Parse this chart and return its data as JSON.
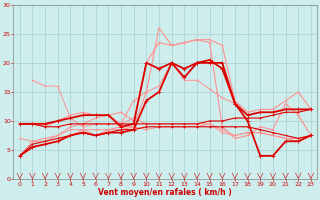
{
  "xlabel": "Vent moyen/en rafales ( km/h )",
  "bg_color": "#ceeeed",
  "grid_color": "#aacfcf",
  "xlim": [
    -0.5,
    23.5
  ],
  "ylim": [
    0,
    30
  ],
  "yticks": [
    0,
    5,
    10,
    15,
    20,
    25,
    30
  ],
  "xticks": [
    0,
    1,
    2,
    3,
    4,
    5,
    6,
    7,
    8,
    9,
    10,
    11,
    12,
    13,
    14,
    15,
    16,
    17,
    18,
    19,
    20,
    21,
    22,
    23
  ],
  "lines": [
    {
      "x": [
        0,
        1,
        2,
        3,
        4,
        5,
        6,
        7,
        8,
        9,
        10,
        11,
        12,
        13,
        14,
        15,
        16,
        17,
        18,
        19,
        20,
        21,
        22,
        23
      ],
      "y": [
        4.0,
        6.0,
        6.5,
        7.0,
        7.5,
        8.0,
        7.5,
        8.0,
        8.5,
        8.5,
        9.0,
        9.0,
        9.0,
        9.0,
        9.0,
        9.0,
        9.0,
        9.0,
        9.0,
        8.5,
        8.0,
        7.5,
        7.0,
        7.5
      ],
      "color": "#dd0000",
      "lw": 0.8,
      "marker": "+",
      "ms": 2.0,
      "zorder": 3
    },
    {
      "x": [
        0,
        1,
        2,
        3,
        4,
        5,
        6,
        7,
        8,
        9,
        10,
        11,
        12,
        13,
        14,
        15,
        16,
        17,
        18,
        19,
        20,
        21,
        22,
        23
      ],
      "y": [
        9.5,
        9.5,
        9.0,
        9.0,
        9.5,
        9.5,
        9.5,
        9.5,
        9.5,
        9.5,
        9.5,
        9.5,
        9.5,
        9.5,
        9.5,
        10.0,
        10.0,
        10.5,
        10.5,
        10.5,
        11.0,
        11.5,
        11.5,
        12.0
      ],
      "color": "#dd0000",
      "lw": 0.8,
      "marker": "+",
      "ms": 2.0,
      "zorder": 3
    },
    {
      "x": [
        0,
        1,
        2,
        3,
        4,
        5,
        6,
        7,
        8,
        9,
        10,
        11,
        12,
        13,
        14,
        15,
        16,
        17,
        18,
        19,
        20,
        21,
        22,
        23
      ],
      "y": [
        7.0,
        6.5,
        7.0,
        7.5,
        8.5,
        8.5,
        8.5,
        8.5,
        8.5,
        9.0,
        8.5,
        9.0,
        9.0,
        9.0,
        9.0,
        9.5,
        8.0,
        7.5,
        8.0,
        8.0,
        7.5,
        7.0,
        6.5,
        7.5
      ],
      "color": "#ff9090",
      "lw": 0.7,
      "marker": "+",
      "ms": 1.8,
      "zorder": 2
    },
    {
      "x": [
        0,
        1,
        2,
        3,
        4,
        5,
        6,
        7,
        8,
        9,
        10,
        11,
        12,
        13,
        14,
        15,
        16,
        17,
        18,
        19,
        20,
        21,
        22,
        23
      ],
      "y": [
        4.0,
        5.5,
        6.0,
        6.5,
        7.5,
        8.0,
        7.5,
        8.0,
        8.0,
        8.5,
        13.5,
        15.0,
        20.0,
        17.5,
        20.0,
        20.0,
        20.0,
        13.0,
        10.0,
        4.0,
        4.0,
        6.5,
        6.5,
        7.5
      ],
      "color": "#dd0000",
      "lw": 1.3,
      "marker": "+",
      "ms": 2.5,
      "zorder": 4
    },
    {
      "x": [
        0,
        1,
        2,
        3,
        4,
        5,
        6,
        7,
        8,
        9,
        10,
        11,
        12,
        13,
        14,
        15,
        16,
        17,
        18,
        19,
        20,
        21,
        22,
        23
      ],
      "y": [
        9.5,
        9.5,
        9.5,
        10.0,
        10.5,
        11.0,
        11.0,
        11.0,
        9.0,
        9.5,
        20.0,
        19.0,
        20.0,
        19.0,
        20.0,
        20.5,
        19.0,
        13.0,
        11.0,
        11.5,
        11.5,
        12.0,
        12.0,
        12.0
      ],
      "color": "#dd0000",
      "lw": 1.3,
      "marker": "+",
      "ms": 2.5,
      "zorder": 4
    },
    {
      "x": [
        0,
        1,
        2,
        3,
        4,
        5,
        6,
        7,
        8,
        9,
        10,
        11,
        12,
        13,
        14,
        15,
        16,
        17,
        18,
        19,
        20,
        21,
        22,
        23
      ],
      "y": [
        4.0,
        5.5,
        6.0,
        6.5,
        7.5,
        8.5,
        7.5,
        8.5,
        9.0,
        9.0,
        15.0,
        26.0,
        23.0,
        23.5,
        24.0,
        23.5,
        9.0,
        7.0,
        7.5,
        9.0,
        8.5,
        13.0,
        11.0,
        7.5
      ],
      "color": "#ff9090",
      "lw": 0.8,
      "marker": "+",
      "ms": 2.0,
      "zorder": 2
    },
    {
      "x": [
        0,
        1,
        2,
        3,
        4,
        5,
        6,
        7,
        8,
        9,
        10,
        11,
        12,
        13,
        14,
        15,
        16,
        17,
        18,
        19,
        20,
        21,
        22,
        23
      ],
      "y": [
        9.5,
        9.5,
        9.0,
        10.0,
        11.0,
        11.5,
        11.0,
        11.0,
        11.5,
        10.0,
        20.0,
        23.5,
        23.0,
        23.5,
        24.0,
        24.0,
        23.0,
        13.5,
        11.5,
        12.0,
        12.0,
        13.5,
        15.0,
        12.0
      ],
      "color": "#ff9090",
      "lw": 0.8,
      "marker": "+",
      "ms": 2.0,
      "zorder": 2
    },
    {
      "x": [
        0,
        1,
        2,
        3,
        4,
        5,
        6,
        7,
        8,
        9,
        10,
        11,
        12,
        13,
        14,
        15,
        16,
        17
      ],
      "y": [
        4.0,
        6.5,
        6.5,
        7.5,
        9.0,
        9.5,
        10.5,
        11.0,
        9.5,
        13.5,
        15.0,
        16.0,
        20.0,
        17.0,
        17.0,
        15.5,
        14.0,
        13.0
      ],
      "color": "#ff9090",
      "lw": 0.7,
      "marker": "+",
      "ms": 1.8,
      "zorder": 2
    },
    {
      "x": [
        1,
        2,
        3,
        4,
        5,
        6,
        7,
        8,
        9,
        10,
        11,
        12,
        13,
        14,
        15,
        16,
        17,
        18,
        19,
        20,
        21,
        22,
        23
      ],
      "y": [
        17.0,
        16.0,
        16.0,
        10.5,
        9.0,
        9.5,
        9.5,
        9.5,
        10.5,
        9.5,
        9.5,
        9.5,
        9.5,
        9.5,
        9.5,
        8.5,
        7.5,
        8.0,
        8.0,
        7.5,
        7.0,
        7.0,
        7.5
      ],
      "color": "#ff9090",
      "lw": 0.7,
      "marker": "+",
      "ms": 1.8,
      "zorder": 2
    }
  ],
  "arrow_color": "#cc0000"
}
